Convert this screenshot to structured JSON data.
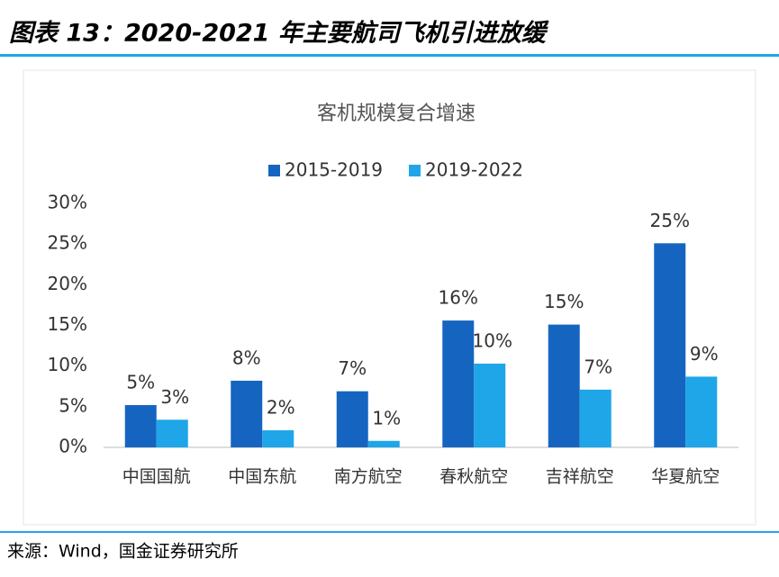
{
  "header": {
    "title": "图表 13：2020-2021 年主要航司飞机引进放缓"
  },
  "chart_data": {
    "type": "bar",
    "title": "客机规模复合增速",
    "categories": [
      "中国国航",
      "中国东航",
      "南方航空",
      "春秋航空",
      "吉祥航空",
      "华夏航空"
    ],
    "series": [
      {
        "name": "2015-2019",
        "color": "#1565c0",
        "values": [
          5.2,
          8.2,
          6.9,
          15.6,
          15.1,
          25.1
        ],
        "value_labels": [
          "5%",
          "8%",
          "7%",
          "16%",
          "15%",
          "25%"
        ]
      },
      {
        "name": "2019-2022",
        "color": "#1fa6e8",
        "values": [
          3.4,
          2.1,
          0.8,
          10.3,
          7.1,
          8.7
        ],
        "value_labels": [
          "3%",
          "2%",
          "1%",
          "10%",
          "7%",
          "9%"
        ]
      }
    ],
    "ylim": [
      0,
      30
    ],
    "yticks": [
      {
        "value": 0,
        "label": "0%"
      },
      {
        "value": 5,
        "label": "5%"
      },
      {
        "value": 10,
        "label": "10%"
      },
      {
        "value": 15,
        "label": "15%"
      },
      {
        "value": 20,
        "label": "20%"
      },
      {
        "value": 25,
        "label": "25%"
      },
      {
        "value": 30,
        "label": "30%"
      }
    ],
    "grid": false,
    "legend": "top"
  },
  "footer": {
    "source": "来源：Wind，国金证券研究所"
  }
}
